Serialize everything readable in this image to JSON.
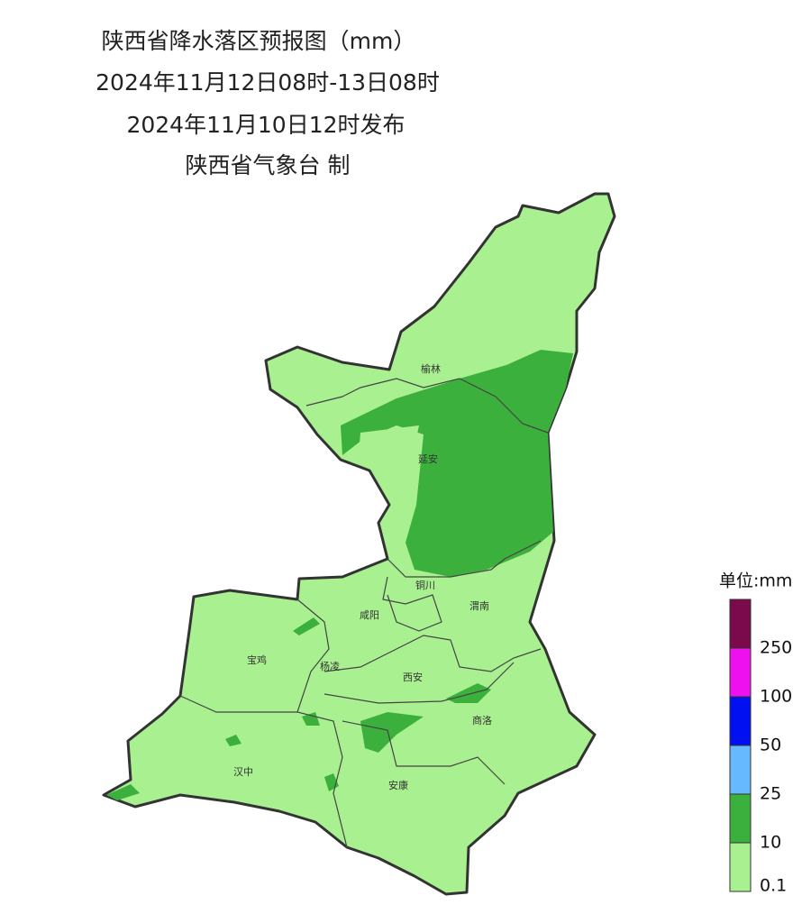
{
  "title": {
    "line1": "陕西省降水落区预报图（mm）",
    "line2": "2024年11月12日08时-13日08时",
    "line3": "2024年11月10日12时发布",
    "line4": "陕西省气象台 制"
  },
  "cities": [
    "榆林",
    "延安",
    "铜川",
    "咸阳",
    "渭南",
    "宝鸡",
    "杨凌",
    "西安",
    "商洛",
    "汉中",
    "安康"
  ],
  "legend": {
    "title": "单位:mm",
    "colors": [
      "#7a0a4a",
      "#ee10ee",
      "#0010f0",
      "#66b8ff",
      "#3cb03c",
      "#a8f090"
    ],
    "labels": [
      "250",
      "100",
      "50",
      "25",
      "10",
      "0.1"
    ]
  }
}
